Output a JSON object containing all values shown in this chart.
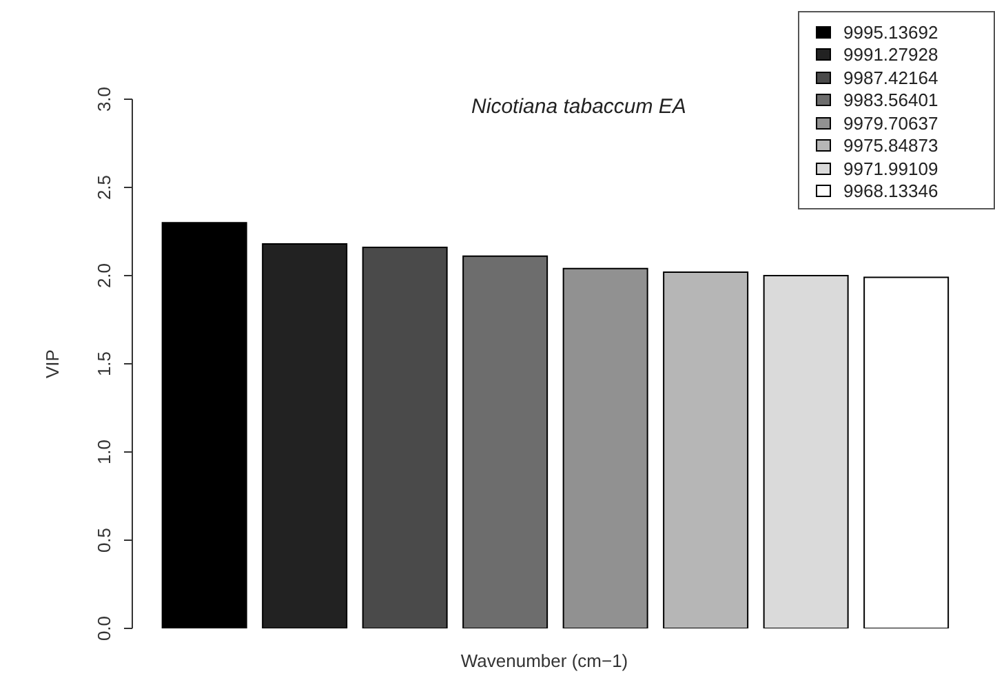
{
  "chart_data": {
    "type": "bar",
    "title": "Nicotiana tabaccum EA",
    "xlabel": "Wavenumber (cm−1)",
    "ylabel": "VIP",
    "categories": [
      null,
      null,
      null,
      null,
      null,
      null,
      null,
      null
    ],
    "series": [
      {
        "name": "9995.13692",
        "color": "#000000",
        "values": [
          2.3,
          null,
          null,
          null,
          null,
          null,
          null,
          null
        ]
      },
      {
        "name": "9991.27928",
        "color": "#222222",
        "values": [
          null,
          2.18,
          null,
          null,
          null,
          null,
          null,
          null
        ]
      },
      {
        "name": "9987.42164",
        "color": "#4a4a4a",
        "values": [
          null,
          null,
          2.16,
          null,
          null,
          null,
          null,
          null
        ]
      },
      {
        "name": "9983.56401",
        "color": "#6d6d6d",
        "values": [
          null,
          null,
          null,
          2.11,
          null,
          null,
          null,
          null
        ]
      },
      {
        "name": "9979.70637",
        "color": "#919191",
        "values": [
          null,
          null,
          null,
          null,
          2.04,
          null,
          null,
          null
        ]
      },
      {
        "name": "9975.84873",
        "color": "#b6b6b6",
        "values": [
          null,
          null,
          null,
          null,
          null,
          2.02,
          null,
          null
        ]
      },
      {
        "name": "9971.99109",
        "color": "#dadada",
        "values": [
          null,
          null,
          null,
          null,
          null,
          null,
          2.0,
          null
        ]
      },
      {
        "name": "9968.13346",
        "color": "#ffffff",
        "values": [
          null,
          null,
          null,
          null,
          null,
          null,
          null,
          1.99
        ]
      }
    ],
    "stacked": true,
    "ylim": [
      0,
      3
    ],
    "yticks": [
      {
        "value": 0,
        "label": "0.0"
      },
      {
        "value": 0.5,
        "label": "0.5"
      },
      {
        "value": 1,
        "label": "1.0"
      },
      {
        "value": 1.5,
        "label": "1.5"
      },
      {
        "value": 2,
        "label": "2.0"
      },
      {
        "value": 2.5,
        "label": "2.5"
      },
      {
        "value": 3,
        "label": "3.0"
      }
    ],
    "tick_labels": "y",
    "legend": "top right",
    "grid": false
  }
}
